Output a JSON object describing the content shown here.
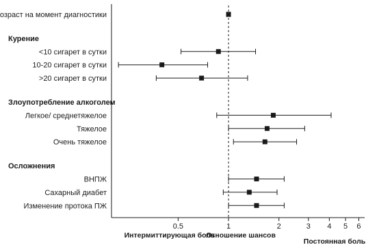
{
  "chart_data": {
    "type": "forest",
    "title": "",
    "xlabel": "Отношение шансов",
    "scale": "log",
    "xlim": [
      0.2,
      6.5
    ],
    "reference_line": 1,
    "x_ticks": [
      {
        "value": 0.5,
        "label": "0.5"
      },
      {
        "value": 1,
        "label": "1"
      },
      {
        "value": 2,
        "label": "2"
      },
      {
        "value": 3,
        "label": "3"
      },
      {
        "value": 4,
        "label": "4"
      },
      {
        "value": 5,
        "label": "5"
      },
      {
        "value": 6,
        "label": "6"
      }
    ],
    "direction_labels": {
      "left": "Интермиттирующая боль",
      "right": "Постоянная боль"
    },
    "rows": [
      {
        "kind": "item",
        "label": "Возраст на момент диагностики",
        "or": 1.0,
        "lo": 0.98,
        "hi": 1.02
      },
      {
        "kind": "gap"
      },
      {
        "kind": "group",
        "label": "Курение"
      },
      {
        "kind": "item",
        "label": "<10 сигарет в сутки",
        "or": 0.87,
        "lo": 0.52,
        "hi": 1.45
      },
      {
        "kind": "item",
        "label": "10-20 сигарет в сутки",
        "or": 0.4,
        "lo": 0.22,
        "hi": 0.75
      },
      {
        "kind": "item",
        "label": ">20 сигарет в сутки",
        "or": 0.69,
        "lo": 0.37,
        "hi": 1.3
      },
      {
        "kind": "gap"
      },
      {
        "kind": "group",
        "label": "Злоупотребление алкоголем"
      },
      {
        "kind": "item",
        "label": "Легкое/ среднетяжелое",
        "or": 1.85,
        "lo": 0.85,
        "hi": 4.1
      },
      {
        "kind": "item",
        "label": "Тяжелое",
        "or": 1.7,
        "lo": 1.0,
        "hi": 2.85
      },
      {
        "kind": "item",
        "label": "Очень тяжелое",
        "or": 1.65,
        "lo": 1.07,
        "hi": 2.55
      },
      {
        "kind": "gap"
      },
      {
        "kind": "group",
        "label": "Осложнения"
      },
      {
        "kind": "item",
        "label": "ВНПЖ",
        "or": 1.47,
        "lo": 1.0,
        "hi": 2.15
      },
      {
        "kind": "item",
        "label": "Сахарный диабет",
        "or": 1.33,
        "lo": 0.93,
        "hi": 1.95
      },
      {
        "kind": "item",
        "label": "Изменение протока ПЖ",
        "or": 1.47,
        "lo": 1.0,
        "hi": 2.15
      }
    ]
  }
}
